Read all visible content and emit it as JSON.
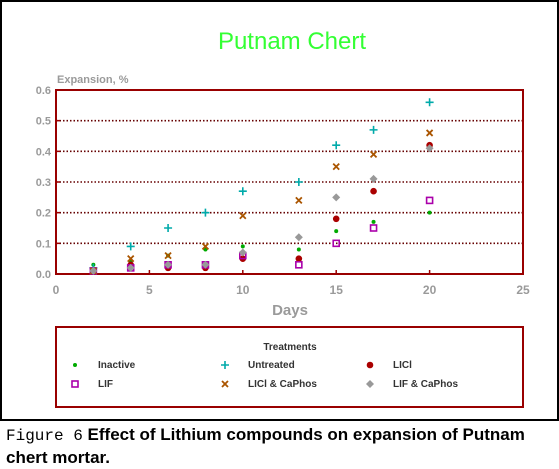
{
  "chart_data": {
    "type": "scatter",
    "title": "Putnam Chert",
    "ylabel": "Expansion, %",
    "xlabel": "Days",
    "xlim": [
      0,
      25
    ],
    "ylim": [
      0,
      0.6
    ],
    "x_ticks": [
      "0",
      "5",
      "10",
      "15",
      "20",
      "25"
    ],
    "y_ticks": [
      "0.0",
      "0.1",
      "0.2",
      "0.3",
      "0.4",
      "0.5",
      "0.6"
    ],
    "grid": "horizontal dotted",
    "legend_title": "Treatments",
    "legend_position": "bottom",
    "series": [
      {
        "name": "Inactive",
        "marker": "dot",
        "color": "#00aa00",
        "x": [
          2,
          4,
          6,
          8,
          10,
          13,
          15,
          17,
          20
        ],
        "y": [
          0.03,
          0.04,
          0.06,
          0.08,
          0.09,
          0.08,
          0.14,
          0.17,
          0.2
        ]
      },
      {
        "name": "Untreated",
        "marker": "plus",
        "color": "#00aaaa",
        "x": [
          2,
          4,
          6,
          8,
          10,
          13,
          15,
          17,
          20
        ],
        "y": [
          0.02,
          0.09,
          0.15,
          0.2,
          0.27,
          0.3,
          0.42,
          0.47,
          0.56
        ]
      },
      {
        "name": "LICl",
        "marker": "filled-circle",
        "color": "#aa0000",
        "x": [
          2,
          4,
          6,
          8,
          10,
          13,
          15,
          17,
          20
        ],
        "y": [
          0.01,
          0.03,
          0.02,
          0.02,
          0.05,
          0.05,
          0.18,
          0.27,
          0.42
        ]
      },
      {
        "name": "LIF",
        "marker": "open-square",
        "color": "#aa00aa",
        "x": [
          2,
          4,
          6,
          8,
          10,
          13,
          15,
          17,
          20
        ],
        "y": [
          0.01,
          0.02,
          0.03,
          0.03,
          0.06,
          0.03,
          0.1,
          0.15,
          0.24
        ]
      },
      {
        "name": "LICl & CaPhos",
        "marker": "x",
        "color": "#aa5500",
        "x": [
          2,
          4,
          6,
          8,
          10,
          13,
          15,
          17,
          20
        ],
        "y": [
          0.01,
          0.05,
          0.06,
          0.09,
          0.19,
          0.24,
          0.35,
          0.39,
          0.46
        ]
      },
      {
        "name": "LIF & CaPhos",
        "marker": "diamond",
        "color": "#999999",
        "x": [
          2,
          4,
          6,
          8,
          10,
          13,
          15,
          17,
          20
        ],
        "y": [
          0.01,
          0.02,
          0.03,
          0.03,
          0.07,
          0.12,
          0.25,
          0.31,
          0.41
        ]
      }
    ]
  },
  "caption": {
    "figure_label": "Figure 6",
    "text": " Effect of Lithium compounds on expansion of Putnam chert mortar."
  },
  "colors": {
    "title": "#33ff33",
    "frame": "#990000",
    "axis_text": "#9a9a9a",
    "grid": "#660000"
  }
}
